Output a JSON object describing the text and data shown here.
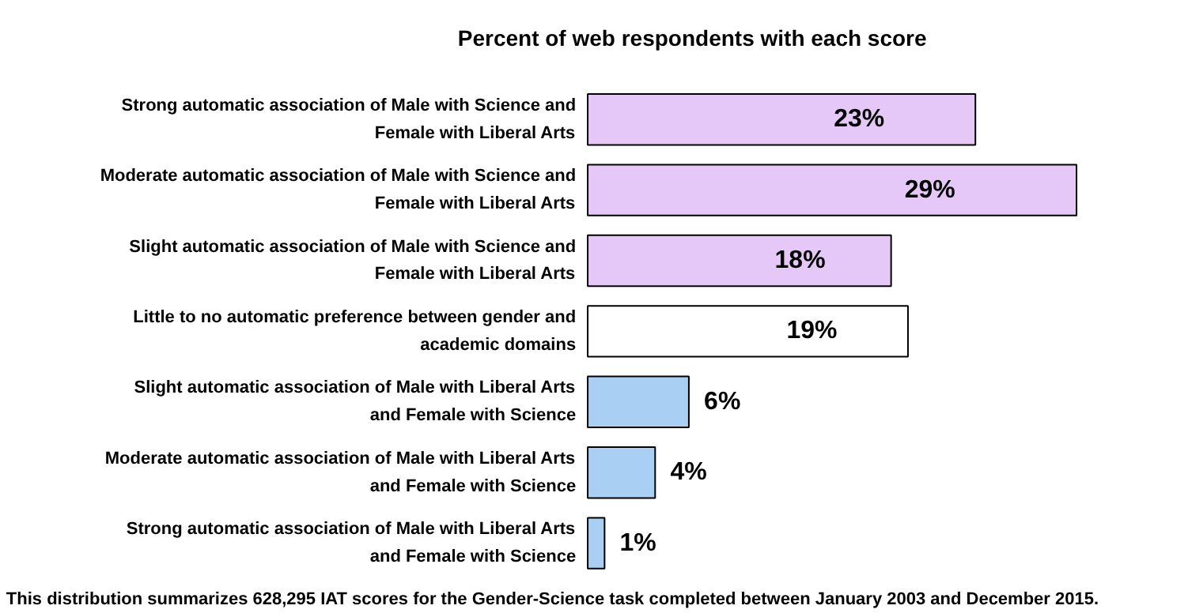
{
  "chart_data": {
    "type": "bar",
    "orientation": "horizontal",
    "title": "Percent of web respondents with each score",
    "categories": [
      "Strong automatic association of Male with Science and Female with Liberal Arts",
      "Moderate automatic association of Male with Science and Female with Liberal Arts",
      "Slight automatic association of Male with Science and Female with Liberal Arts",
      "Little to no automatic preference between gender and academic domains",
      "Slight automatic association of Male with Liberal Arts and Female with Science",
      "Moderate automatic association of Male with Liberal Arts and Female with Science",
      "Strong automatic association of Male with Liberal Arts and Female with Science"
    ],
    "values": [
      23,
      29,
      18,
      19,
      6,
      4,
      1
    ],
    "value_labels": [
      "23%",
      "29%",
      "18%",
      "19%",
      "6%",
      "4%",
      "1%"
    ],
    "colors": [
      "#e6c8f8",
      "#e6c8f8",
      "#e6c8f8",
      "#ffffff",
      "#a9cff2",
      "#a9cff2",
      "#a9cff2"
    ],
    "annotations": [
      "This distribution summarizes 628,295 IAT scores for the Gender-Science  task completed between January 2003 and December 2015."
    ]
  }
}
